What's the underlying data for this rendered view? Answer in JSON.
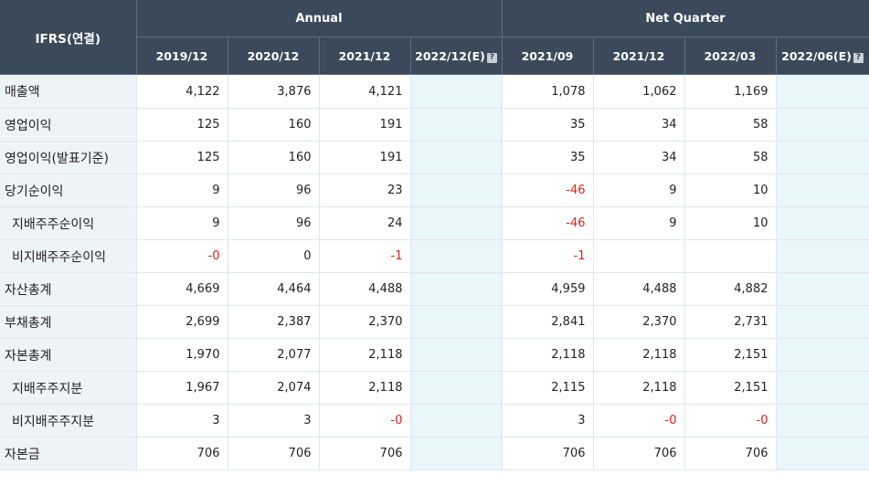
{
  "header": {
    "corner": "IFRS(연결)",
    "groups": [
      "Annual",
      "Net Quarter"
    ],
    "periods": [
      "2019/12",
      "2020/12",
      "2021/12",
      "2022/12(E)",
      "2021/09",
      "2021/12",
      "2022/03",
      "2022/06(E)"
    ],
    "help_glyph": "?"
  },
  "rows": [
    {
      "label": "매출액",
      "sub": false,
      "values": [
        "4,122",
        "3,876",
        "4,121",
        "",
        "1,078",
        "1,062",
        "1,169",
        ""
      ]
    },
    {
      "label": "영업이익",
      "sub": false,
      "values": [
        "125",
        "160",
        "191",
        "",
        "35",
        "34",
        "58",
        ""
      ]
    },
    {
      "label": "영업이익(발표기준)",
      "sub": false,
      "values": [
        "125",
        "160",
        "191",
        "",
        "35",
        "34",
        "58",
        ""
      ]
    },
    {
      "label": "당기순이익",
      "sub": false,
      "values": [
        "9",
        "96",
        "23",
        "",
        "-46",
        "9",
        "10",
        ""
      ]
    },
    {
      "label": "지배주주순이익",
      "sub": true,
      "values": [
        "9",
        "96",
        "24",
        "",
        "-46",
        "9",
        "10",
        ""
      ]
    },
    {
      "label": "비지배주주순이익",
      "sub": true,
      "values": [
        "-0",
        "0",
        "-1",
        "",
        "-1",
        "",
        "",
        ""
      ]
    },
    {
      "label": "자산총계",
      "sub": false,
      "values": [
        "4,669",
        "4,464",
        "4,488",
        "",
        "4,959",
        "4,488",
        "4,882",
        ""
      ]
    },
    {
      "label": "부채총계",
      "sub": false,
      "values": [
        "2,699",
        "2,387",
        "2,370",
        "",
        "2,841",
        "2,370",
        "2,731",
        ""
      ]
    },
    {
      "label": "자본총계",
      "sub": false,
      "values": [
        "1,970",
        "2,077",
        "2,118",
        "",
        "2,118",
        "2,118",
        "2,151",
        ""
      ]
    },
    {
      "label": "지배주주지분",
      "sub": true,
      "values": [
        "1,967",
        "2,074",
        "2,118",
        "",
        "2,115",
        "2,118",
        "2,151",
        ""
      ]
    },
    {
      "label": "비지배주주지분",
      "sub": true,
      "values": [
        "3",
        "3",
        "-0",
        "",
        "3",
        "-0",
        "-0",
        ""
      ]
    },
    {
      "label": "자본금",
      "sub": false,
      "values": [
        "706",
        "706",
        "706",
        "",
        "706",
        "706",
        "706",
        ""
      ]
    }
  ],
  "colors": {
    "header_bg": "#3b4a5a",
    "label_bg": "#eef3f6",
    "estimate_bg": "#e9f6fb",
    "negative_text": "#e0201b"
  }
}
